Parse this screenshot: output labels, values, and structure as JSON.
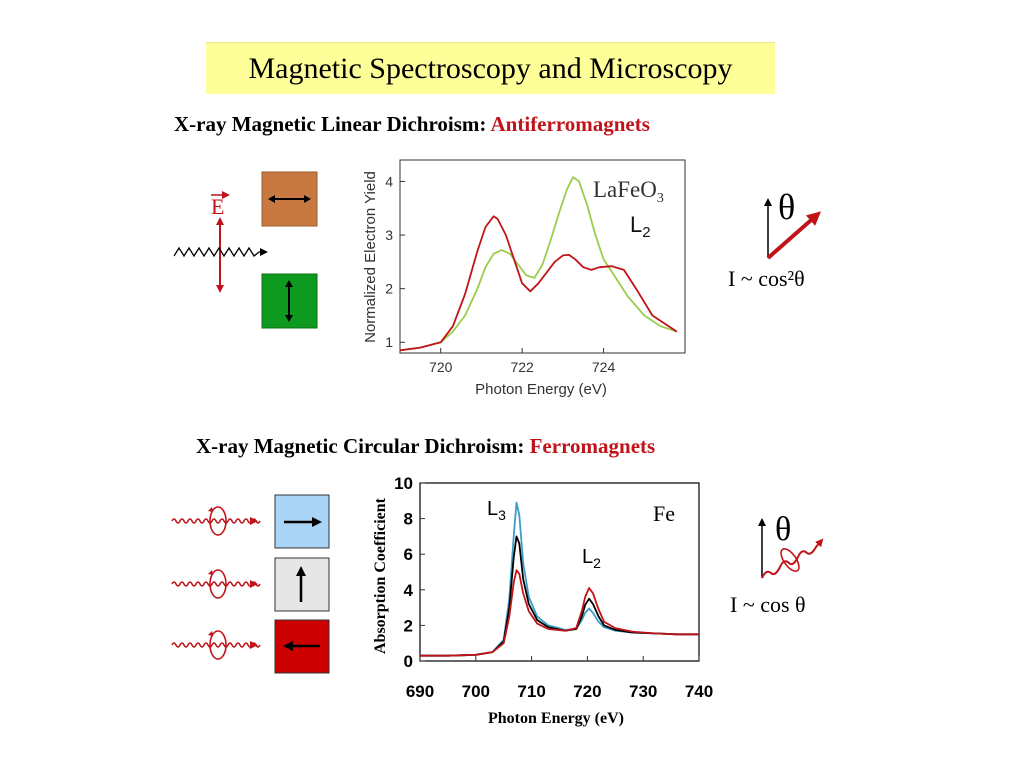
{
  "slide": {
    "title": "Magnetic Spectroscopy and Microscopy"
  },
  "xmld": {
    "heading_main": "X-ray Magnetic Linear Dichroism: ",
    "heading_accent": "Antiferromagnets",
    "efield_symbol": "E",
    "formula": "I  ~ cos²θ",
    "theta_symbol": "θ",
    "colors": {
      "box_orange": "#c87941",
      "box_green": "#0e9a1e",
      "red": "#c0141a",
      "green_curve": "#9acd4a"
    }
  },
  "xmcd": {
    "heading_main": "X-ray Magnetic Circular Dichroism: ",
    "heading_accent": "Ferromagnets",
    "formula": "I ~ cos θ",
    "theta_symbol": "θ",
    "colors": {
      "box_blue": "#aad4f5",
      "box_gray": "#e6e6e6",
      "box_red": "#cc0000",
      "cyan_curve": "#3a9fc8",
      "black_curve": "#000000",
      "red_curve": "#c0141a"
    }
  },
  "chart_data": [
    {
      "type": "line",
      "title": "",
      "xlabel": "Photon Energy (eV)",
      "ylabel": "Normalized Electron Yield",
      "xlim": [
        719,
        726
      ],
      "ylim": [
        0.8,
        4.4
      ],
      "xticks": [
        720,
        722,
        724
      ],
      "yticks": [
        1,
        2,
        3,
        4
      ],
      "annotations": {
        "sample": "LaFeO",
        "sample_sub": "3",
        "edge": "L",
        "edge_sub": "2"
      },
      "series": [
        {
          "color": "#9acd4a",
          "x": [
            719,
            719.5,
            720,
            720.3,
            720.6,
            720.9,
            721.1,
            721.3,
            721.5,
            721.7,
            721.9,
            722.1,
            722.3,
            722.5,
            722.7,
            722.9,
            723.1,
            723.25,
            723.4,
            723.6,
            723.8,
            724.0,
            724.3,
            724.6,
            725.0,
            725.4,
            725.8
          ],
          "y": [
            0.85,
            0.9,
            1.0,
            1.2,
            1.5,
            2.0,
            2.4,
            2.65,
            2.72,
            2.65,
            2.45,
            2.25,
            2.2,
            2.45,
            2.9,
            3.4,
            3.85,
            4.08,
            4.0,
            3.55,
            3.0,
            2.55,
            2.2,
            1.85,
            1.5,
            1.3,
            1.2
          ]
        },
        {
          "color": "#c0141a",
          "x": [
            719,
            719.5,
            720,
            720.3,
            720.6,
            720.9,
            721.1,
            721.3,
            721.4,
            721.6,
            721.8,
            722.0,
            722.2,
            722.4,
            722.6,
            722.8,
            723.0,
            723.15,
            723.3,
            723.5,
            723.7,
            723.9,
            724.2,
            724.5,
            724.8,
            725.2,
            725.8
          ],
          "y": [
            0.85,
            0.9,
            1.0,
            1.3,
            1.9,
            2.7,
            3.15,
            3.35,
            3.3,
            3.0,
            2.55,
            2.1,
            1.95,
            2.1,
            2.3,
            2.5,
            2.62,
            2.63,
            2.55,
            2.4,
            2.35,
            2.4,
            2.42,
            2.35,
            2.0,
            1.5,
            1.2
          ]
        }
      ]
    },
    {
      "type": "line",
      "title": "",
      "xlabel": "Photon Energy (eV)",
      "ylabel": "Absorption Coefficient",
      "xlim": [
        690,
        740
      ],
      "ylim": [
        0,
        10
      ],
      "xticks": [
        690,
        700,
        710,
        720,
        730,
        740
      ],
      "yticks": [
        0,
        2,
        4,
        6,
        8,
        10
      ],
      "annotations": {
        "edge3": "L",
        "edge3_sub": "3",
        "edge2": "L",
        "edge2_sub": "2",
        "element": "Fe"
      },
      "series": [
        {
          "color": "#3a9fc8",
          "x": [
            690,
            695,
            700,
            703,
            705,
            706,
            706.8,
            707.3,
            707.8,
            708.5,
            709.5,
            711,
            713,
            716,
            718,
            719,
            719.6,
            720.3,
            721,
            722,
            723,
            725,
            728,
            732,
            736,
            740
          ],
          "y": [
            0.3,
            0.3,
            0.35,
            0.5,
            1.2,
            3.5,
            7.0,
            8.9,
            8.2,
            5.5,
            3.6,
            2.5,
            2.0,
            1.75,
            1.8,
            2.3,
            2.7,
            2.95,
            2.7,
            2.2,
            1.9,
            1.7,
            1.6,
            1.55,
            1.5,
            1.5
          ]
        },
        {
          "color": "#000000",
          "x": [
            690,
            695,
            700,
            703,
            705,
            706,
            706.8,
            707.3,
            707.8,
            708.5,
            709.5,
            711,
            713,
            716,
            718,
            719,
            719.6,
            720.3,
            721,
            722,
            723,
            725,
            728,
            732,
            736,
            740
          ],
          "y": [
            0.3,
            0.3,
            0.35,
            0.5,
            1.1,
            3.0,
            5.8,
            7.0,
            6.6,
            4.6,
            3.2,
            2.3,
            1.9,
            1.7,
            1.8,
            2.5,
            3.15,
            3.5,
            3.2,
            2.5,
            2.0,
            1.75,
            1.6,
            1.55,
            1.5,
            1.5
          ]
        },
        {
          "color": "#c0141a",
          "x": [
            690,
            695,
            700,
            703,
            705,
            706,
            706.8,
            707.3,
            707.8,
            708.5,
            709.5,
            711,
            713,
            716,
            718,
            719,
            719.6,
            720.3,
            721,
            722,
            723,
            725,
            728,
            732,
            736,
            740
          ],
          "y": [
            0.3,
            0.3,
            0.35,
            0.5,
            1.0,
            2.5,
            4.4,
            5.1,
            4.9,
            3.8,
            2.8,
            2.1,
            1.8,
            1.7,
            1.85,
            2.8,
            3.6,
            4.1,
            3.8,
            2.9,
            2.2,
            1.85,
            1.65,
            1.55,
            1.5,
            1.5
          ]
        }
      ]
    }
  ]
}
